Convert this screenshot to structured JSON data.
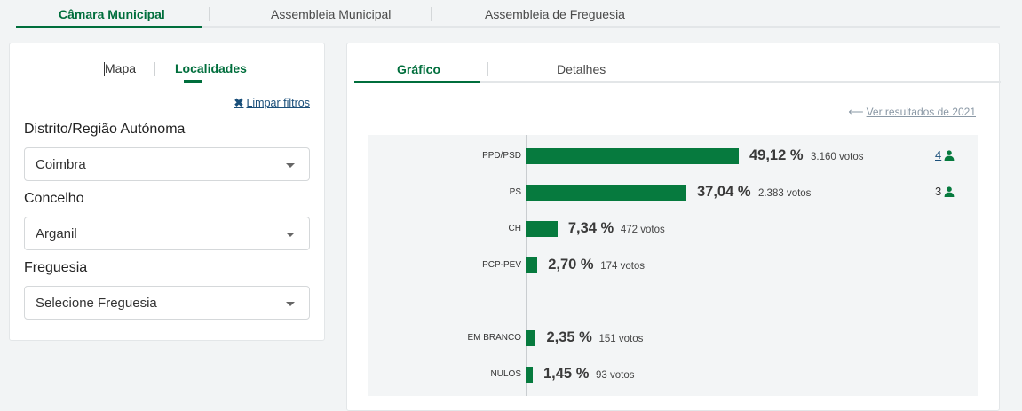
{
  "top_tabs": {
    "items": [
      {
        "label": "Câmara Municipal"
      },
      {
        "label": "Assembleia Municipal"
      },
      {
        "label": "Assembleia de Freguesia"
      }
    ]
  },
  "filters": {
    "tabs": [
      {
        "label": "Mapa"
      },
      {
        "label": "Localidades"
      }
    ],
    "clear_label": "Limpar filtros",
    "fields": [
      {
        "label": "Distrito/Região Autónoma",
        "value": "Coimbra"
      },
      {
        "label": "Concelho",
        "value": "Arganil"
      },
      {
        "label": "Freguesia",
        "value": "Selecione Freguesia"
      }
    ]
  },
  "results": {
    "tabs": [
      {
        "label": "Gráfico"
      },
      {
        "label": "Detalhes"
      }
    ],
    "previous_link": "Ver resultados de 2021",
    "accent_color": "#067a3e",
    "rows": [
      {
        "party": "PPD/PSD",
        "percent": 49.12,
        "percent_label": "49,12 %",
        "votes_label": "3.160 votos",
        "seats": "4",
        "seats_link": true
      },
      {
        "party": "PS",
        "percent": 37.04,
        "percent_label": "37,04 %",
        "votes_label": "2.383 votos",
        "seats": "3",
        "seats_link": false
      },
      {
        "party": "CH",
        "percent": 7.34,
        "percent_label": "7,34 %",
        "votes_label": "472 votos",
        "seats": "",
        "seats_link": false
      },
      {
        "party": "PCP-PEV",
        "percent": 2.7,
        "percent_label": "2,70 %",
        "votes_label": "174 votos",
        "seats": "",
        "seats_link": false
      },
      {
        "party": "EM BRANCO",
        "percent": 2.35,
        "percent_label": "2,35 %",
        "votes_label": "151 votos",
        "seats": "",
        "seats_link": false
      },
      {
        "party": "NULOS",
        "percent": 1.45,
        "percent_label": "1,45 %",
        "votes_label": "93 votos",
        "seats": "",
        "seats_link": false
      }
    ]
  },
  "chart_data": {
    "type": "bar",
    "categories": [
      "PPD/PSD",
      "PS",
      "CH",
      "PCP-PEV",
      "EM BRANCO",
      "NULOS"
    ],
    "values": [
      49.12,
      37.04,
      7.34,
      2.7,
      2.35,
      1.45
    ],
    "votes": [
      3160,
      2383,
      472,
      174,
      151,
      93
    ],
    "seats": [
      4,
      3,
      null,
      null,
      null,
      null
    ],
    "orientation": "horizontal",
    "grid": false
  }
}
